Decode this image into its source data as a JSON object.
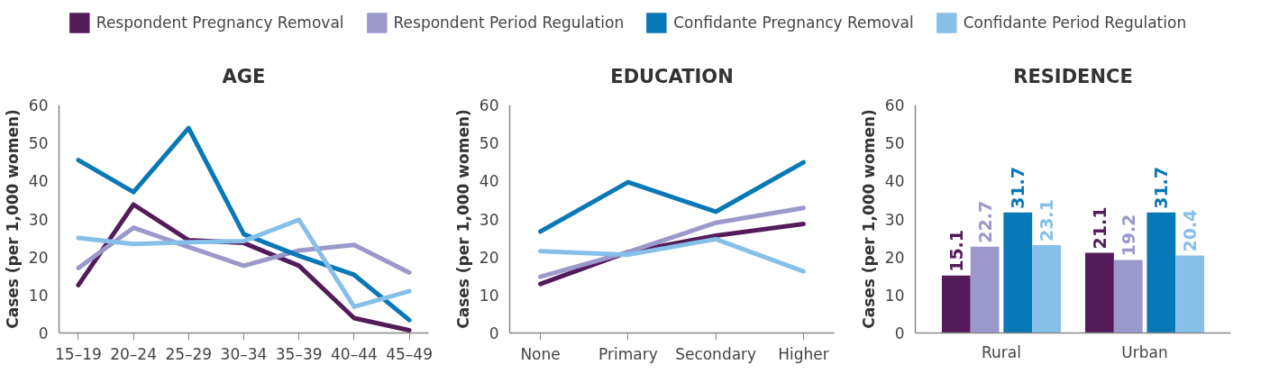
{
  "chart_data": [
    {
      "type": "line",
      "title": "AGE",
      "ylabel": "Cases (per 1,000 women)",
      "categories": [
        "15–19",
        "20–24",
        "25–29",
        "30–34",
        "35–39",
        "40–44",
        "45–49"
      ],
      "ylim": [
        0,
        60
      ],
      "yticks": [
        0,
        10,
        20,
        30,
        40,
        50,
        60
      ],
      "legend": "top",
      "series": [
        {
          "name": "Respondent Pregnancy Removal",
          "color": "#541b5a",
          "values": [
            12.6,
            33.8,
            24.4,
            23.7,
            17.7,
            3.9,
            0.7
          ]
        },
        {
          "name": "Respondent Period Regulation",
          "color": "#9b98cb",
          "values": [
            17.1,
            27.7,
            22.6,
            17.7,
            21.7,
            23.2,
            15.9
          ]
        },
        {
          "name": "Confidante Pregnancy Removal",
          "color": "#0878b6",
          "values": [
            45.5,
            37.1,
            53.9,
            26.0,
            20.3,
            15.3,
            3.4
          ]
        },
        {
          "name": "Confidante Period Regulation",
          "color": "#86bfe8",
          "values": [
            25.0,
            23.4,
            23.9,
            24.2,
            29.8,
            6.9,
            11.0
          ]
        }
      ]
    },
    {
      "type": "line",
      "title": "EDUCATION",
      "ylabel": "Cases (per 1,000 women)",
      "categories": [
        "None",
        "Primary",
        "Secondary",
        "Higher"
      ],
      "ylim": [
        0,
        60
      ],
      "yticks": [
        0,
        10,
        20,
        30,
        40,
        50,
        60
      ],
      "series": [
        {
          "color": "#541b5a",
          "values": [
            12.9,
            21.3,
            25.6,
            28.7
          ]
        },
        {
          "color": "#9b98cb",
          "values": [
            14.8,
            21.3,
            29.0,
            32.9
          ]
        },
        {
          "color": "#0878b6",
          "values": [
            26.7,
            39.7,
            31.9,
            44.9
          ]
        },
        {
          "color": "#86bfe8",
          "values": [
            21.5,
            20.6,
            24.7,
            16.2
          ]
        }
      ]
    },
    {
      "type": "bar",
      "title": "RESIDENCE",
      "ylabel": "Cases (per 1,000 women)",
      "categories": [
        "Rural",
        "Urban"
      ],
      "ylim": [
        0,
        60
      ],
      "yticks": [
        0,
        10,
        20,
        30,
        40,
        50,
        60
      ],
      "data_labels": true,
      "series": [
        {
          "color": "#541b5a",
          "values": [
            15.1,
            21.1
          ]
        },
        {
          "color": "#9b98cb",
          "values": [
            22.7,
            19.2
          ]
        },
        {
          "color": "#0878b6",
          "values": [
            31.7,
            31.7
          ]
        },
        {
          "color": "#86bfe8",
          "values": [
            23.1,
            20.4
          ]
        }
      ]
    }
  ]
}
